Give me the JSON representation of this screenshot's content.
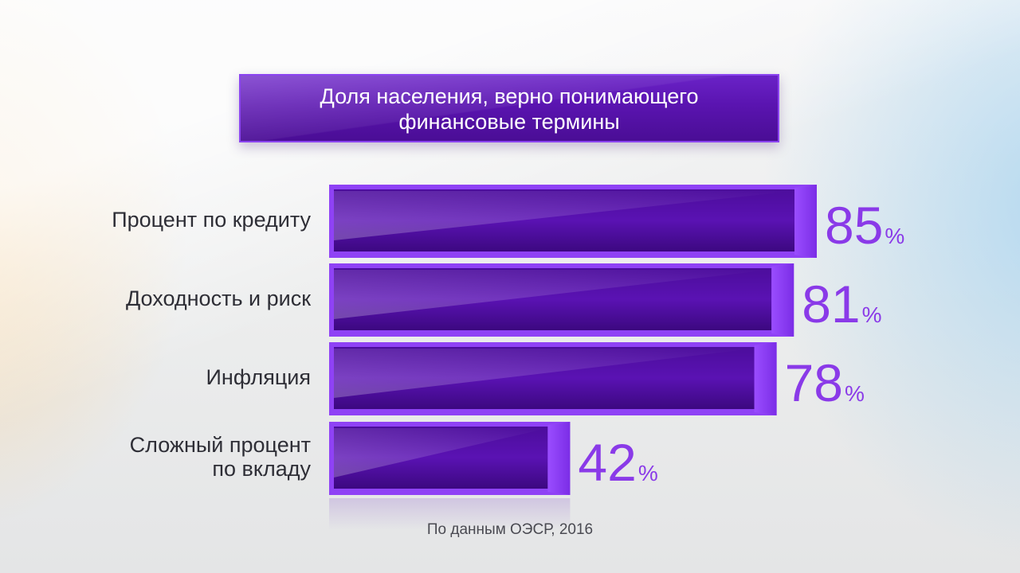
{
  "chart_data": {
    "type": "bar",
    "orientation": "horizontal",
    "title": "Доля населения, верно понимающего\nфинансовые термины",
    "categories": [
      "Процент по кредиту",
      "Доходность и риск",
      "Инфляция",
      "Сложный процент\nпо вкладу"
    ],
    "values": [
      85,
      81,
      78,
      42
    ],
    "value_suffix": "%",
    "xlim": [
      0,
      100
    ],
    "grid": false,
    "source": "По данным ОЭСР, 2016",
    "colors": {
      "bar": "#5a12b3",
      "bar_light": "#8a3cf0",
      "label": "#8a3ae8",
      "title_bg": "#5a14b0"
    }
  }
}
